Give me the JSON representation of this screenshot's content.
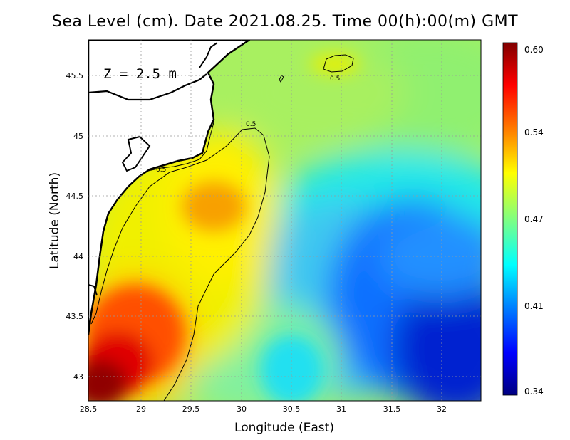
{
  "title": "Sea Level (cm). Date 2021.08.25. Time 00(h):00(m) GMT",
  "depth_label": "Z = 2.5 m",
  "x_axis": {
    "label": "Longitude (East)",
    "range": [
      28.5,
      32.4
    ],
    "ticks": [
      "28.5",
      "29",
      "29.5",
      "30",
      "30.5",
      "31",
      "31.5",
      "32"
    ]
  },
  "y_axis": {
    "label": "Latitude (North)",
    "range": [
      42.8,
      45.8
    ],
    "ticks": [
      "43",
      "43.5",
      "44",
      "44.5",
      "45",
      "45.5"
    ]
  },
  "colorbar": {
    "range": [
      0.34,
      0.6
    ],
    "ticks": [
      "0.34",
      "0.41",
      "0.47",
      "0.54",
      "0.60"
    ],
    "colors": [
      "#000080",
      "#0000ff",
      "#0080ff",
      "#00ffff",
      "#80ff80",
      "#ffff00",
      "#ff8000",
      "#ff0000",
      "#800000"
    ]
  },
  "contour_labels": [
    "0.5",
    "0.5",
    "0.5"
  ],
  "land_color": "#ffffff",
  "grid": true
}
